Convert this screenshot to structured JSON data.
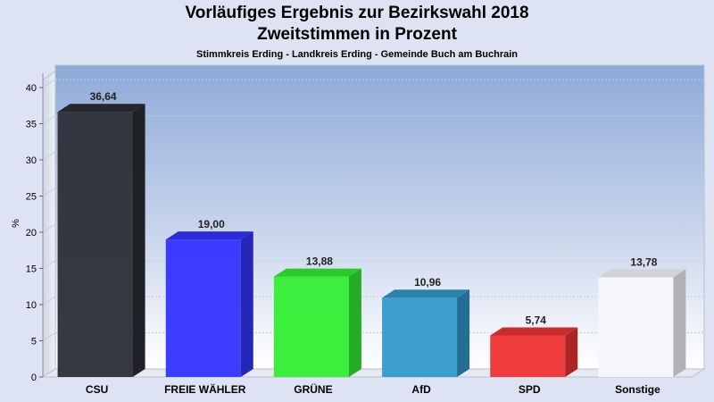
{
  "header": {
    "title_line1": "Vorläufiges Ergebnis zur Bezirkswahl 2018",
    "title_line2": "Zweitstimmen in Prozent",
    "subtitle": "Stimmkreis Erding - Landkreis Erding - Gemeinde Buch am Buchrain"
  },
  "chart_data": {
    "type": "bar",
    "title": "Vorläufiges Ergebnis zur Bezirkswahl 2018 Zweitstimmen in Prozent",
    "subtitle": "Stimmkreis Erding - Landkreis Erding - Gemeinde Buch am Buchrain",
    "ylabel": "%",
    "xlabel": "",
    "ylim": [
      0,
      40
    ],
    "yticks": [
      0,
      5,
      10,
      15,
      20,
      25,
      30,
      35,
      40
    ],
    "grid": true,
    "categories": [
      "CSU",
      "FREIE WÄHLER",
      "GRÜNE",
      "AfD",
      "SPD",
      "Sonstige"
    ],
    "values": [
      36.64,
      19.0,
      13.88,
      10.96,
      5.74,
      13.78
    ],
    "value_labels": [
      "36,64",
      "19,00",
      "13,88",
      "10,96",
      "5,74",
      "13,78"
    ],
    "colors": [
      "#2b2e36",
      "#3333ff",
      "#33ee33",
      "#3399cc",
      "#ee3333",
      "#f6f7fb"
    ]
  }
}
